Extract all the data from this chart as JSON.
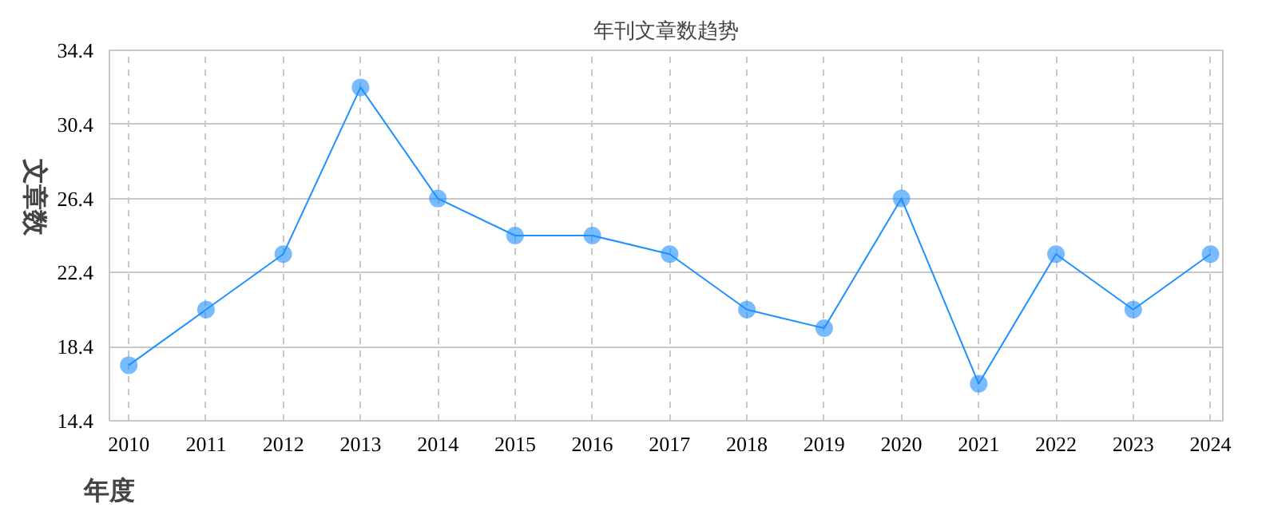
{
  "chart_data": {
    "type": "line",
    "title": "年刊文章数趋势",
    "xlabel": "年度",
    "ylabel": "文章数",
    "x": [
      2010,
      2011,
      2012,
      2013,
      2014,
      2015,
      2016,
      2017,
      2018,
      2019,
      2020,
      2021,
      2022,
      2023,
      2024
    ],
    "series": [
      {
        "color": "#1e90ff",
        "values": [
          17.4,
          20.4,
          23.4,
          32.4,
          26.4,
          24.4,
          24.4,
          23.4,
          20.4,
          19.4,
          26.4,
          16.4,
          23.4,
          20.4,
          23.4
        ]
      }
    ],
    "xlim": [
      2009.75,
      2024.16
    ],
    "xticks": [
      2010,
      2011,
      2012,
      2013,
      2014,
      2015,
      2016,
      2017,
      2018,
      2019,
      2020,
      2021,
      2022,
      2023,
      2024
    ],
    "ylim": [
      14.4,
      34.4
    ],
    "yticks": [
      14.4,
      18.4,
      22.4,
      26.4,
      30.4,
      34.4
    ],
    "grid": true,
    "marker": "circle",
    "line_style": "solid"
  }
}
